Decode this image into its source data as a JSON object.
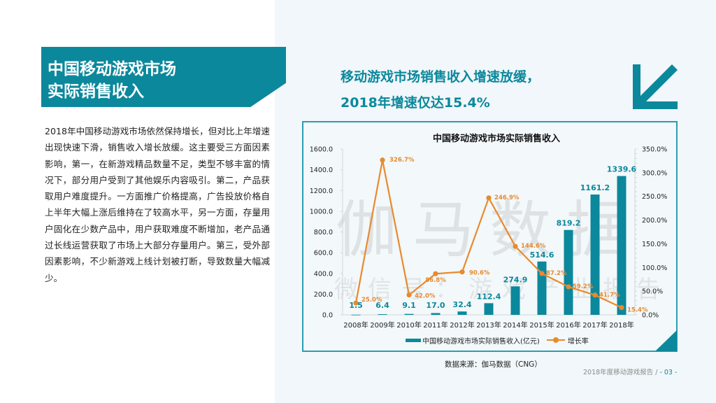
{
  "section": {
    "title_line1": "中国移动游戏市场",
    "title_line2": "实际销售收入"
  },
  "body_text": "2018年中国移动游戏市场依然保持增长，但对比上年增速出现快速下滑，销售收入增长放缓。这主要受三方面因素影响，第一，在新游戏精品数量不足，类型不够丰富的情况下，部分用户受到了其他娱乐内容吸引。第二，产品获取用户难度提升。一方面推广价格提高，广告投放价格自上半年大幅上涨后维持在了较高水平，另一方面，存量用户固化在少数产品中，用户获取难度不断增加，老产品通过长线运营获取了市场上大部分存量用户。第三，受外部因素影响，不少新游戏上线计划被打断，导致数量大幅减少。",
  "headline": {
    "line1": "移动游戏市场销售收入增速放缓，",
    "line2": "2018年增速仅达15.4%"
  },
  "icons": {
    "trend_arrow": "arrow-down-left-icon"
  },
  "watermark": {
    "main": "伽马数据",
    "sub": "微信号：游戏产业报告"
  },
  "colors": {
    "accent": "#0b889c",
    "bar": "#0b889c",
    "line": "#e88a2e",
    "background_right": "#f1f7fa"
  },
  "chart_data": {
    "type": "bar+line",
    "title": "中国移动游戏市场实际销售收入",
    "categories": [
      "2008年",
      "2009年",
      "2010年",
      "2011年",
      "2012年",
      "2013年",
      "2014年",
      "2015年",
      "2016年",
      "2017年",
      "2018年"
    ],
    "series": [
      {
        "name": "中国移动游戏市场实际销售收入(亿元)",
        "type": "bar",
        "axis": "left",
        "values": [
          1.5,
          6.4,
          9.1,
          17.0,
          32.4,
          112.4,
          274.9,
          514.6,
          819.2,
          1161.2,
          1339.6
        ],
        "labels": [
          "1.5",
          "6.4",
          "9.1",
          "17.0",
          "32.4",
          "112.4",
          "274.9",
          "514.6",
          "819.2",
          "1161.2",
          "1339.6"
        ]
      },
      {
        "name": "增长率",
        "type": "line",
        "axis": "right",
        "values": [
          25.0,
          326.7,
          42.0,
          86.8,
          90.6,
          246.9,
          144.6,
          87.2,
          59.2,
          41.7,
          15.4
        ],
        "labels": [
          "25.0%",
          "326.7%",
          "42.0%",
          "86.8%",
          "90.6%",
          "246.9%",
          "144.6%",
          "87.2%",
          "59.2%",
          "41.7%",
          "15.4%"
        ]
      }
    ],
    "y_left": {
      "min": 0,
      "max": 1600,
      "step": 200,
      "ticks": [
        "0.0",
        "200.0",
        "400.0",
        "600.0",
        "800.0",
        "1000.0",
        "1200.0",
        "1400.0",
        "1600.0"
      ]
    },
    "y_right": {
      "min": 0,
      "max": 350,
      "step": 50,
      "ticks": [
        "0.0%",
        "50.0%",
        "100.0%",
        "150.0%",
        "200.0%",
        "250.0%",
        "300.0%",
        "350.0%"
      ]
    },
    "legend_position": "bottom",
    "grid": false
  },
  "legend": {
    "bar_label": "中国移动游戏市场实际销售收入(亿元)",
    "line_label": "增长率"
  },
  "source": "数据来源：伽马数据（CNG）",
  "footer": {
    "report": "2018年度移动游戏报告  /",
    "page": "- 03 -"
  }
}
